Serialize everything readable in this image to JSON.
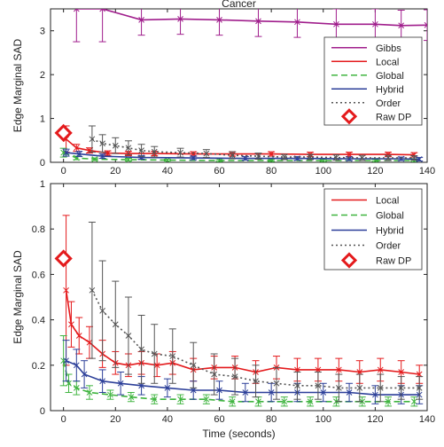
{
  "colors": {
    "Gibbs": "#a01e8c",
    "Local": "#e41a1c",
    "Global": "#3fb43f",
    "Hybrid": "#2c3f99",
    "Order": "#555555",
    "RawDP": "#e41a1c"
  },
  "chart_data": [
    {
      "type": "line",
      "title": "Cancer",
      "xlabel": "",
      "ylabel": "Edge Marginal SAD",
      "xlim": [
        -5,
        140
      ],
      "ylim": [
        0,
        3.5
      ],
      "xticks": [
        0,
        20,
        40,
        60,
        80,
        100,
        120,
        140
      ],
      "yticks": [
        0,
        1,
        2,
        3
      ],
      "legend": {
        "position": "top-right",
        "entries": [
          "Gibbs",
          "Local",
          "Global",
          "Hybrid",
          "Order",
          "Raw DP"
        ]
      },
      "raw_dp": {
        "x": 0,
        "y": 0.67
      },
      "series": [
        {
          "name": "Gibbs",
          "style": "solid",
          "x": [
            5,
            15,
            30,
            45,
            60,
            75,
            90,
            105,
            120,
            130,
            140
          ],
          "y": [
            3.5,
            3.5,
            3.25,
            3.27,
            3.25,
            3.22,
            3.2,
            3.15,
            3.15,
            3.12,
            3.13
          ],
          "err": [
            0.75,
            0.75,
            0.35,
            0.35,
            0.35,
            0.35,
            0.35,
            0.35,
            0.35,
            0.35,
            0.35
          ]
        },
        {
          "name": "Local",
          "style": "solid",
          "x": [
            1,
            5,
            10,
            17,
            25,
            35,
            50,
            65,
            80,
            95,
            110,
            125,
            135
          ],
          "y": [
            0.53,
            0.33,
            0.27,
            0.21,
            0.2,
            0.2,
            0.19,
            0.19,
            0.19,
            0.18,
            0.18,
            0.18,
            0.17
          ],
          "err": [
            0.3,
            0.08,
            0.06,
            0.05,
            0.05,
            0.05,
            0.05,
            0.05,
            0.05,
            0.05,
            0.05,
            0.05,
            0.05
          ]
        },
        {
          "name": "Global",
          "style": "dashed",
          "x": [
            0,
            5,
            12,
            25,
            40,
            60,
            80,
            100,
            120,
            135
          ],
          "y": [
            0.22,
            0.1,
            0.07,
            0.06,
            0.05,
            0.04,
            0.04,
            0.04,
            0.04,
            0.04
          ],
          "err": [
            0.1,
            0.04,
            0.03,
            0.03,
            0.02,
            0.02,
            0.02,
            0.02,
            0.02,
            0.02
          ]
        },
        {
          "name": "Hybrid",
          "style": "solid",
          "x": [
            1,
            6,
            15,
            30,
            50,
            70,
            90,
            110,
            130,
            137
          ],
          "y": [
            0.22,
            0.19,
            0.14,
            0.11,
            0.1,
            0.09,
            0.09,
            0.08,
            0.08,
            0.07
          ],
          "err": [
            0.08,
            0.06,
            0.05,
            0.04,
            0.04,
            0.04,
            0.04,
            0.04,
            0.04,
            0.04
          ]
        },
        {
          "name": "Order",
          "style": "dotted",
          "x": [
            11,
            15,
            20,
            25,
            30,
            35,
            45,
            55,
            65,
            75,
            85,
            95,
            105,
            115,
            125,
            135
          ],
          "y": [
            0.53,
            0.43,
            0.38,
            0.33,
            0.27,
            0.24,
            0.22,
            0.2,
            0.16,
            0.14,
            0.12,
            0.12,
            0.11,
            0.1,
            0.1,
            0.1
          ],
          "err": [
            0.3,
            0.2,
            0.18,
            0.16,
            0.14,
            0.12,
            0.1,
            0.09,
            0.08,
            0.07,
            0.06,
            0.06,
            0.06,
            0.06,
            0.06,
            0.05
          ]
        }
      ]
    },
    {
      "type": "line",
      "title": "",
      "xlabel": "Time (seconds)",
      "ylabel": "Edge Marginal SAD",
      "xlim": [
        -5,
        140
      ],
      "ylim": [
        0,
        1
      ],
      "xticks": [
        0,
        20,
        40,
        60,
        80,
        100,
        120,
        140
      ],
      "yticks": [
        0,
        0.2,
        0.4,
        0.6,
        0.8,
        1
      ],
      "legend": {
        "position": "top-right",
        "entries": [
          "Local",
          "Global",
          "Hybrid",
          "Order",
          "Raw DP"
        ]
      },
      "raw_dp": {
        "x": 0,
        "y": 0.67
      },
      "series": [
        {
          "name": "Local",
          "style": "solid",
          "x": [
            1,
            3,
            6,
            10,
            15,
            20,
            25,
            30,
            36,
            42,
            50,
            58,
            66,
            74,
            82,
            90,
            98,
            106,
            114,
            122,
            130,
            137
          ],
          "y": [
            0.53,
            0.38,
            0.33,
            0.3,
            0.25,
            0.21,
            0.2,
            0.21,
            0.2,
            0.21,
            0.18,
            0.19,
            0.19,
            0.17,
            0.19,
            0.18,
            0.18,
            0.18,
            0.17,
            0.18,
            0.17,
            0.16
          ],
          "err": [
            0.33,
            0.1,
            0.08,
            0.07,
            0.06,
            0.05,
            0.05,
            0.05,
            0.05,
            0.05,
            0.05,
            0.05,
            0.05,
            0.05,
            0.05,
            0.05,
            0.05,
            0.05,
            0.05,
            0.05,
            0.05,
            0.04
          ]
        },
        {
          "name": "Global",
          "style": "dashed",
          "x": [
            0,
            2,
            5,
            10,
            18,
            26,
            35,
            45,
            55,
            65,
            75,
            85,
            95,
            105,
            115,
            125,
            135
          ],
          "y": [
            0.22,
            0.12,
            0.1,
            0.08,
            0.07,
            0.06,
            0.05,
            0.05,
            0.05,
            0.04,
            0.04,
            0.04,
            0.04,
            0.04,
            0.04,
            0.04,
            0.04
          ],
          "err": [
            0.11,
            0.04,
            0.03,
            0.03,
            0.02,
            0.02,
            0.02,
            0.02,
            0.02,
            0.02,
            0.02,
            0.02,
            0.02,
            0.02,
            0.02,
            0.02,
            0.02
          ]
        },
        {
          "name": "Hybrid",
          "style": "solid",
          "x": [
            1,
            5,
            8,
            15,
            22,
            30,
            40,
            50,
            60,
            70,
            80,
            90,
            100,
            110,
            120,
            130,
            137
          ],
          "y": [
            0.22,
            0.2,
            0.16,
            0.13,
            0.12,
            0.11,
            0.1,
            0.09,
            0.09,
            0.08,
            0.08,
            0.08,
            0.08,
            0.08,
            0.07,
            0.07,
            0.07
          ],
          "err": [
            0.09,
            0.07,
            0.06,
            0.05,
            0.05,
            0.04,
            0.04,
            0.04,
            0.04,
            0.04,
            0.04,
            0.04,
            0.04,
            0.04,
            0.04,
            0.04,
            0.04
          ]
        },
        {
          "name": "Order",
          "style": "dotted",
          "x": [
            11,
            15,
            20,
            25,
            30,
            35,
            42,
            50,
            58,
            66,
            74,
            82,
            90,
            98,
            106,
            114,
            122,
            130,
            137
          ],
          "y": [
            0.53,
            0.44,
            0.38,
            0.33,
            0.27,
            0.25,
            0.24,
            0.2,
            0.16,
            0.15,
            0.13,
            0.12,
            0.11,
            0.11,
            0.1,
            0.1,
            0.1,
            0.1,
            0.1
          ],
          "err": [
            0.3,
            0.22,
            0.19,
            0.17,
            0.15,
            0.13,
            0.12,
            0.1,
            0.09,
            0.08,
            0.07,
            0.07,
            0.06,
            0.06,
            0.06,
            0.06,
            0.06,
            0.05,
            0.05
          ]
        }
      ]
    }
  ]
}
